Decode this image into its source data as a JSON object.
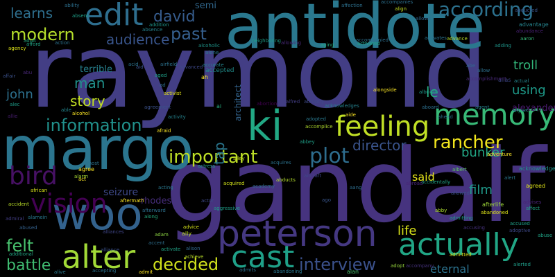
{
  "words": [
    {
      "text": "raymond",
      "color": "#433e85"
    },
    {
      "text": "gandalf",
      "color": "#46337f"
    },
    {
      "text": "antidote",
      "color": "#2a788e"
    },
    {
      "text": "margo",
      "color": "#2b758e"
    },
    {
      "text": "woo",
      "color": "#33628d"
    },
    {
      "text": "ki",
      "color": "#22a884"
    },
    {
      "text": "feeling",
      "color": "#c0df25"
    },
    {
      "text": "peterson",
      "color": "#453882"
    },
    {
      "text": "actually",
      "color": "#21a685"
    },
    {
      "text": "alter",
      "color": "#a2da37"
    },
    {
      "text": "memory",
      "color": "#38b977"
    },
    {
      "text": "cast",
      "color": "#1fa088"
    },
    {
      "text": "edit",
      "color": "#2e6e8e"
    },
    {
      "text": "vision",
      "color": "#440154"
    },
    {
      "text": "bird",
      "color": "#471164"
    },
    {
      "text": "according",
      "color": "#2c718e"
    },
    {
      "text": "important",
      "color": "#bddf26"
    },
    {
      "text": "plot",
      "color": "#2e6d8e"
    },
    {
      "text": "information",
      "color": "#21918c"
    },
    {
      "text": "interview",
      "color": "#3b518b"
    },
    {
      "text": "rancher",
      "color": "#f1e51d"
    },
    {
      "text": "decided",
      "color": "#d0e11c"
    },
    {
      "text": "felt",
      "color": "#48c16e"
    },
    {
      "text": "battle",
      "color": "#40bd72"
    },
    {
      "text": "modern",
      "color": "#b5de2b"
    },
    {
      "text": "audience",
      "color": "#39558c"
    },
    {
      "text": "past",
      "color": "#355f8d"
    },
    {
      "text": "director",
      "color": "#3a548c"
    },
    {
      "text": "david",
      "color": "#365c8d"
    },
    {
      "text": "learns",
      "color": "#2e6f8e"
    },
    {
      "text": "story",
      "color": "#c2df23"
    },
    {
      "text": "tap",
      "color": "#2a768e"
    },
    {
      "text": "bunker",
      "color": "#22a785"
    },
    {
      "text": "film",
      "color": "#1f9a8a"
    },
    {
      "text": "life",
      "color": "#dae319"
    },
    {
      "text": "said",
      "color": "#e5e419"
    },
    {
      "text": "man",
      "color": "#20928c"
    },
    {
      "text": "john",
      "color": "#2d708e"
    },
    {
      "text": "using",
      "color": "#1e9b8a"
    },
    {
      "text": "troll",
      "color": "#32b67a"
    },
    {
      "text": "le",
      "color": "#25ac82"
    },
    {
      "text": "eternal",
      "color": "#2c728e"
    },
    {
      "text": "seizure",
      "color": "#3e4989"
    },
    {
      "text": "rhodes",
      "color": "#472e7c"
    },
    {
      "text": "terrible",
      "color": "#27808e"
    },
    {
      "text": "semi",
      "color": "#31688e"
    },
    {
      "text": "accepted",
      "color": "#21908d"
    },
    {
      "text": "architect",
      "color": "#33638d"
    },
    {
      "text": "alexander",
      "color": "#481b6d"
    },
    {
      "text": "agreed",
      "color": "#dfe318"
    },
    {
      "text": "advantage",
      "color": "#25848e"
    },
    {
      "text": "abundance",
      "color": "#482173"
    },
    {
      "text": "acknowledge",
      "color": "#20928c"
    },
    {
      "text": "afterlife",
      "color": "#a0da39"
    },
    {
      "text": "activist",
      "color": "#e7e419"
    },
    {
      "text": "adopted",
      "color": "#2a788e"
    },
    {
      "text": "aircraft",
      "color": "#3f4788"
    },
    {
      "text": "aggressive",
      "color": "#1f9e89"
    },
    {
      "text": "albert",
      "color": "#5ec962"
    },
    {
      "text": "airport",
      "color": "#1fa187"
    },
    {
      "text": "adventure",
      "color": "#fde725"
    },
    {
      "text": "abby",
      "color": "#addc30"
    },
    {
      "text": "accusing",
      "color": "#46327e"
    },
    {
      "text": "alliance",
      "color": "#3b518b"
    },
    {
      "text": "alone",
      "color": "#2a788e"
    },
    {
      "text": "alan",
      "color": "#4ac16d"
    },
    {
      "text": "adopt",
      "color": "#98d83e"
    },
    {
      "text": "ally",
      "color": "#c2df23"
    },
    {
      "text": "ago",
      "color": "#39568c"
    },
    {
      "text": "aboard",
      "color": "#2d708e"
    },
    {
      "text": "agent",
      "color": "#26828e"
    },
    {
      "text": "albright",
      "color": "#1f988b"
    },
    {
      "text": "ah",
      "color": "#fde725"
    },
    {
      "text": "ai",
      "color": "#26ad81"
    },
    {
      "text": "acid",
      "color": "#2c728e"
    },
    {
      "text": "aid",
      "color": "#3b528b"
    },
    {
      "text": "abe",
      "color": "#31688e"
    },
    {
      "text": "allow",
      "color": "#2d708e"
    },
    {
      "text": "alias",
      "color": "#3e4989"
    },
    {
      "text": "actual",
      "color": "#25858e"
    },
    {
      "text": "aaron",
      "color": "#35b779"
    },
    {
      "text": "adding",
      "color": "#1f968b"
    },
    {
      "text": "afford",
      "color": "#20a486"
    },
    {
      "text": "agency",
      "color": "#dde318"
    },
    {
      "text": "affair",
      "color": "#3b528b"
    },
    {
      "text": "abu",
      "color": "#482878"
    },
    {
      "text": "alec",
      "color": "#1f9e89"
    },
    {
      "text": "allie",
      "color": "#481f70"
    },
    {
      "text": "alcohol",
      "color": "#fde725"
    },
    {
      "text": "able",
      "color": "#24878e"
    },
    {
      "text": "alliances",
      "color": "#404688"
    },
    {
      "text": "accent",
      "color": "#2e6f8e"
    },
    {
      "text": "actress",
      "color": "#1fa187"
    },
    {
      "text": "alley",
      "color": "#c8e020"
    },
    {
      "text": "agree",
      "color": "#fde725"
    },
    {
      "text": "african",
      "color": "#d8e219"
    },
    {
      "text": "alarm",
      "color": "#a8db34"
    },
    {
      "text": "accident",
      "color": "#bade28"
    },
    {
      "text": "admiral",
      "color": "#433e85"
    },
    {
      "text": "alamein",
      "color": "#29788e"
    },
    {
      "text": "abused",
      "color": "#34618d"
    },
    {
      "text": "additional",
      "color": "#22a785"
    },
    {
      "text": "alive",
      "color": "#2a788e"
    },
    {
      "text": "accepting",
      "color": "#2c718e"
    },
    {
      "text": "admit",
      "color": "#fde725"
    },
    {
      "text": "admits",
      "color": "#2d708e"
    },
    {
      "text": "abandoning",
      "color": "#2a768e"
    },
    {
      "text": "accompany",
      "color": "#46327e"
    },
    {
      "text": "alerted",
      "color": "#1f9e89"
    },
    {
      "text": "abuse",
      "color": "#20a486"
    },
    {
      "text": "accused",
      "color": "#1fa088"
    },
    {
      "text": "adoptive",
      "color": "#3e4989"
    },
    {
      "text": "abandoned",
      "color": "#dde318"
    },
    {
      "text": "advises",
      "color": "#482576"
    },
    {
      "text": "achieve",
      "color": "#bade28"
    },
    {
      "text": "affect",
      "color": "#20a486"
    },
    {
      "text": "admitted",
      "color": "#d8e219"
    },
    {
      "text": "admitting",
      "color": "#1fa088"
    },
    {
      "text": "advice",
      "color": "#d5e21a"
    },
    {
      "text": "alison",
      "color": "#31688e"
    },
    {
      "text": "activate",
      "color": "#20a486"
    },
    {
      "text": "adam",
      "color": "#8fd744"
    },
    {
      "text": "along",
      "color": "#26ad81"
    },
    {
      "text": "aftermath",
      "color": "#fde725"
    },
    {
      "text": "afterward",
      "color": "#2d708e"
    },
    {
      "text": "acting",
      "color": "#2a788e"
    },
    {
      "text": "act",
      "color": "#fde725"
    },
    {
      "text": "almost",
      "color": "#2c728e"
    },
    {
      "text": "afraid",
      "color": "#fde725"
    },
    {
      "text": "activity",
      "color": "#25848e"
    },
    {
      "text": "agreement",
      "color": "#3b528b"
    },
    {
      "text": "accomplice",
      "color": "#b2dd2d"
    },
    {
      "text": "aide",
      "color": "#fde725"
    },
    {
      "text": "abbey",
      "color": "#1fa088"
    },
    {
      "text": "aang",
      "color": "#2e6e8e"
    },
    {
      "text": "actor",
      "color": "#3e4989"
    },
    {
      "text": "acquired",
      "color": "#d2e21b"
    },
    {
      "text": "academy",
      "color": "#2e6e8e"
    },
    {
      "text": "abducts",
      "color": "#b5de2b"
    },
    {
      "text": "alert",
      "color": "#2a788e"
    },
    {
      "text": "allowed",
      "color": "#3b528b"
    },
    {
      "text": "accidentally",
      "color": "#20a486"
    },
    {
      "text": "abroad",
      "color": "#482878"
    },
    {
      "text": "abducted",
      "color": "#39568c"
    },
    {
      "text": "ability",
      "color": "#2d708e"
    },
    {
      "text": "adult",
      "color": "#25ac82"
    },
    {
      "text": "absent",
      "color": "#1fa088"
    },
    {
      "text": "accompanied",
      "color": "#2e6f8e"
    },
    {
      "text": "action",
      "color": "#2c728e"
    },
    {
      "text": "addition",
      "color": "#1f968b"
    },
    {
      "text": "absence",
      "color": "#26828e"
    },
    {
      "text": "activated",
      "color": "#20a486"
    },
    {
      "text": "activates",
      "color": "#2c728e"
    },
    {
      "text": "affection",
      "color": "#2d708e"
    },
    {
      "text": "allows",
      "color": "#31688e"
    },
    {
      "text": "accompanies",
      "color": "#2d708e"
    },
    {
      "text": "align",
      "color": "#c2df23"
    },
    {
      "text": "advance",
      "color": "#b8de29"
    },
    {
      "text": "aging",
      "color": "#26ad81"
    },
    {
      "text": "allowing",
      "color": "#482878"
    },
    {
      "text": "neighboring",
      "color": "#1f9e89"
    },
    {
      "text": "alcoholic",
      "color": "#1f968b"
    },
    {
      "text": "aged",
      "color": "#1fa088"
    },
    {
      "text": "accurate",
      "color": "#26828e"
    },
    {
      "text": "advanced",
      "color": "#3e4989"
    },
    {
      "text": "abortion",
      "color": "#440154"
    },
    {
      "text": "alfred",
      "color": "#433e85"
    },
    {
      "text": "abruptly",
      "color": "#3e4989"
    },
    {
      "text": "acknowledges",
      "color": "#26828e"
    },
    {
      "text": "alongside",
      "color": "#fde725"
    },
    {
      "text": "acquires",
      "color": "#2c728e"
    },
    {
      "text": "ad",
      "color": "#2e6f8e"
    },
    {
      "text": "airfield",
      "color": "#2c728e"
    },
    {
      "text": "accomplishment",
      "color": "#482878"
    },
    {
      "text": "ahead",
      "color": "#2c728e"
    }
  ]
}
